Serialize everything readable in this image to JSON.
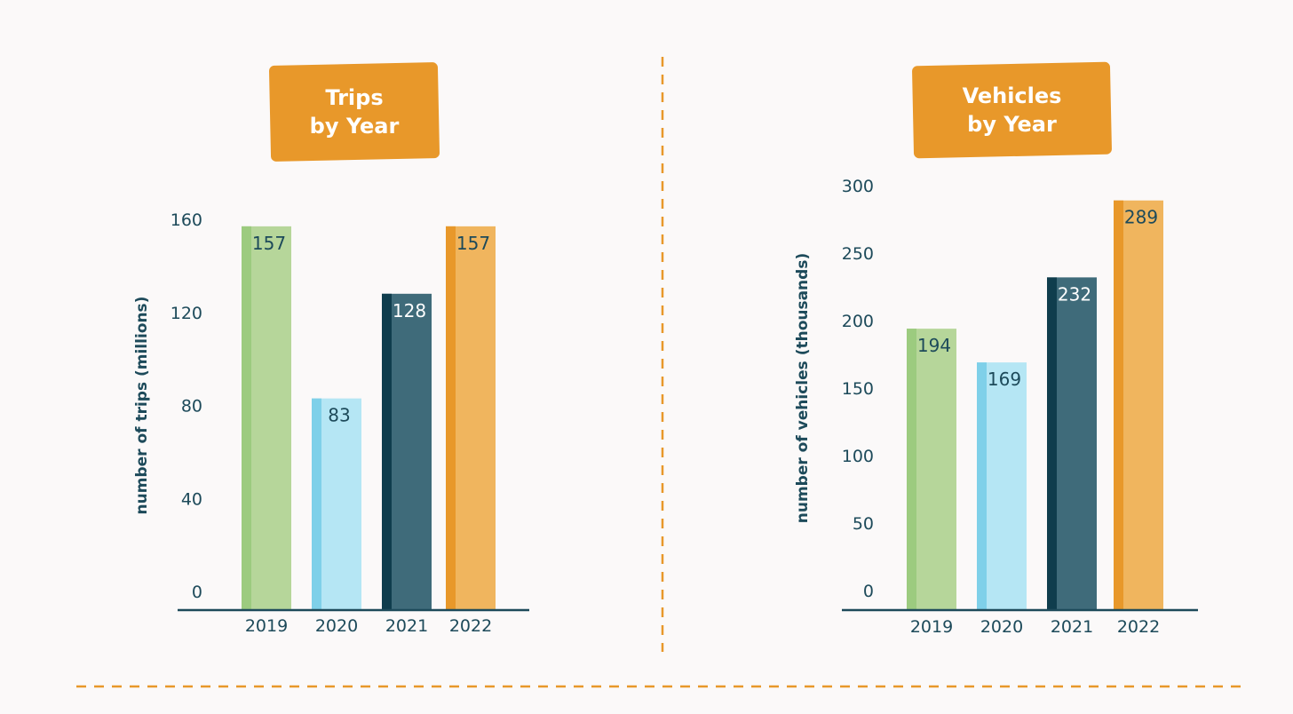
{
  "colors": {
    "background": "#fbf9f9",
    "badge": "#e8982a",
    "axis": "#1d4a5a",
    "divider": "#e8982a",
    "bars": [
      {
        "main": "#b6d69a",
        "accent": "#9ccb7f",
        "label": "#1d4a5a"
      },
      {
        "main": "#b5e6f4",
        "accent": "#7fd0e9",
        "label": "#1d4a5a"
      },
      {
        "main": "#3f6b7a",
        "accent": "#0f3d4d",
        "label": "#ffffff"
      },
      {
        "main": "#f0b55e",
        "accent": "#e8982a",
        "label": "#1d4a5a"
      }
    ]
  },
  "chart_data": [
    {
      "type": "bar",
      "title_lines": [
        "Trips",
        "by Year"
      ],
      "ylabel": "number of trips (millions)",
      "xlabel": "",
      "categories": [
        "2019",
        "2020",
        "2021",
        "2022"
      ],
      "values": [
        157,
        83,
        128,
        157
      ],
      "ylim": [
        0,
        160
      ],
      "yticks": [
        0,
        40,
        80,
        120,
        160
      ],
      "grid": false
    },
    {
      "type": "bar",
      "title_lines": [
        "Vehicles",
        "by Year"
      ],
      "ylabel": "number of vehicles (thousands)",
      "xlabel": "",
      "categories": [
        "2019",
        "2020",
        "2021",
        "2022"
      ],
      "values": [
        194,
        169,
        232,
        289
      ],
      "ylim": [
        0,
        300
      ],
      "yticks": [
        0,
        50,
        100,
        150,
        200,
        250,
        300
      ],
      "grid": false
    }
  ]
}
